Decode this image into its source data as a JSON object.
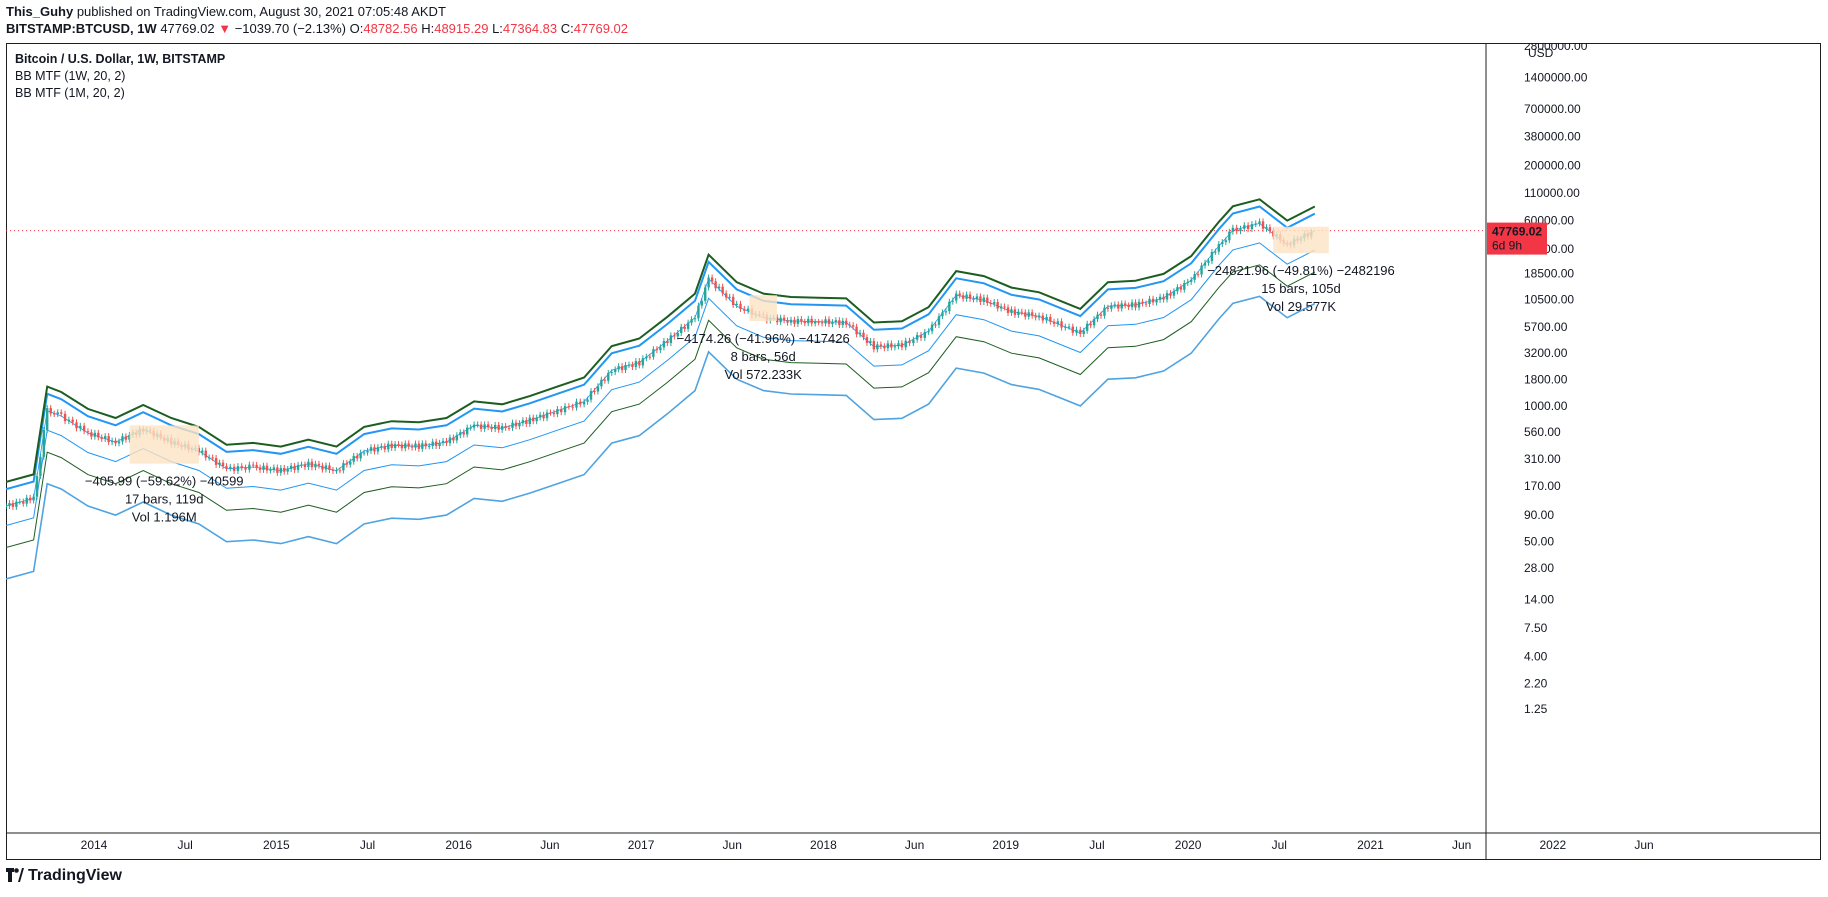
{
  "header": {
    "author": "This_Guhy",
    "published": "published on TradingView.com, August 30, 2021 07:05:48 AKDT",
    "symbol": "BITSTAMP:BTCUSD, 1W",
    "last": "47769.02",
    "change_arrow": "▼",
    "change": "−1039.70 (−2.13%)",
    "o_label": "O:",
    "o_value": "48782.56",
    "h_label": "H:",
    "h_value": "48915.29",
    "l_label": "L:",
    "l_value": "47364.83",
    "c_label": "C:",
    "c_value": "47769.02"
  },
  "legend": {
    "title": "Bitcoin / U.S. Dollar, 1W, BITSTAMP",
    "indicator1": "BB MTF (1W, 20, 2)",
    "indicator2": "BB MTF (1M, 20, 2)"
  },
  "price_badge": {
    "price": "47769.02",
    "countdown": "6d 9h",
    "color": "#f23645"
  },
  "currency": "USD",
  "brand": "TradingView",
  "colors": {
    "up": "#26a69a",
    "down": "#ef5350",
    "weekly_band": "#2196f3",
    "monthly_band": "#4fa3e0",
    "green_line": "#1b5e20",
    "measure_fill": "#fde3c4"
  },
  "chart_data": {
    "type": "line",
    "title": "Bitcoin / U.S. Dollar, 1W, BITSTAMP",
    "y_scale": "log",
    "ylim": [
      1.25,
      2800000
    ],
    "y_ticks": [
      "2800000.00",
      "1400000.00",
      "700000.00",
      "380000.00",
      "200000.00",
      "110000.00",
      "60000.00",
      "32000.00",
      "18500.00",
      "10500.00",
      "5700.00",
      "3200.00",
      "1800.00",
      "1000.00",
      "560.00",
      "310.00",
      "170.00",
      "90.00",
      "50.00",
      "28.00",
      "14.00",
      "7.50",
      "4.00",
      "2.20",
      "1.25"
    ],
    "x_ticks": [
      "2014",
      "Jul",
      "2015",
      "Jul",
      "2016",
      "Jun",
      "2017",
      "Jun",
      "2018",
      "Jun",
      "2019",
      "Jul",
      "2020",
      "Jul",
      "2021",
      "Jun",
      "2022",
      "Jun"
    ],
    "x": [
      "2013-09",
      "2013-11",
      "2013-12",
      "2014-01",
      "2014-03",
      "2014-05",
      "2014-07",
      "2014-09",
      "2014-11",
      "2015-01",
      "2015-03",
      "2015-05",
      "2015-07",
      "2015-09",
      "2015-11",
      "2016-01",
      "2016-03",
      "2016-05",
      "2016-07",
      "2016-09",
      "2016-11",
      "2017-01",
      "2017-03",
      "2017-05",
      "2017-07",
      "2017-09",
      "2017-11",
      "2017-12",
      "2018-02",
      "2018-04",
      "2018-06",
      "2018-08",
      "2018-10",
      "2018-12",
      "2019-02",
      "2019-04",
      "2019-06",
      "2019-08",
      "2019-10",
      "2019-12",
      "2020-03",
      "2020-05",
      "2020-07",
      "2020-09",
      "2020-11",
      "2021-01",
      "2021-02",
      "2021-04",
      "2021-06",
      "2021-08"
    ],
    "series": [
      {
        "values": [
          110,
          130,
          900,
          800,
          550,
          450,
          600,
          450,
          370,
          250,
          260,
          240,
          280,
          240,
          370,
          420,
          410,
          450,
          650,
          610,
          730,
          900,
          1100,
          2200,
          2600,
          4200,
          7000,
          16500,
          9000,
          7000,
          6500,
          6400,
          6300,
          3700,
          3800,
          5200,
          11500,
          10300,
          8000,
          7200,
          5000,
          9000,
          9300,
          10800,
          16000,
          34000,
          48000,
          56000,
          35000,
          47769
        ]
      }
    ],
    "measurements": [
      {
        "text": "−405.99 (−59.62%) −40599",
        "bars": "17 bars, 119d",
        "volume": "Vol 1.196M"
      },
      {
        "text": "−4174.26 (−41.96%) −417426",
        "bars": "8 bars, 56d",
        "volume": "Vol 572.233K"
      },
      {
        "text": "−24821.96 (−49.81%) −2482196",
        "bars": "15 bars, 105d",
        "volume": "Vol 29.577K"
      }
    ]
  }
}
